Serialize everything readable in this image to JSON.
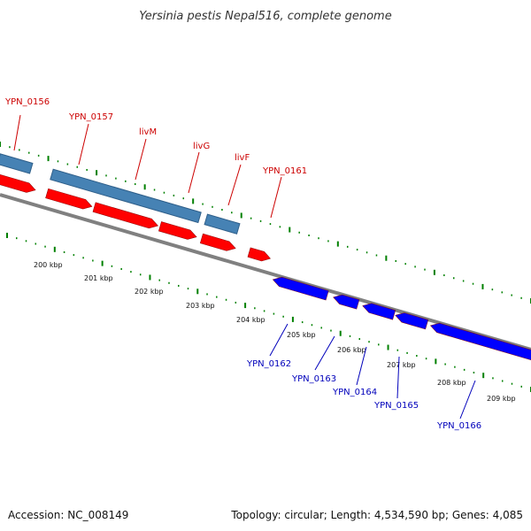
{
  "title": "Yersinia pestis Nepal516, complete genome",
  "footer": {
    "accession": "Accession: NC_008149",
    "summary": "Topology: circular; Length: 4,534,590 bp; Genes: 4,085"
  },
  "colors": {
    "forward_gene": "#ff0000",
    "reverse_gene": "#0000ff",
    "cds_track": "#4682b4",
    "backbone": "#808080",
    "tick": "#008000",
    "forward_label": "#cc0000",
    "reverse_label": "#0000bb"
  },
  "scale_ticks": [
    "200 kbp",
    "201 kbp",
    "202 kbp",
    "203 kbp",
    "204 kbp",
    "205 kbp",
    "206 kbp",
    "207 kbp",
    "208 kbp",
    "209 kbp"
  ],
  "forward_genes": [
    "YPN_0156",
    "YPN_0157",
    "livM",
    "livG",
    "livF",
    "YPN_0161"
  ],
  "reverse_genes": [
    "YPN_0162",
    "YPN_0163",
    "YPN_0164",
    "YPN_0165",
    "YPN_0166"
  ]
}
